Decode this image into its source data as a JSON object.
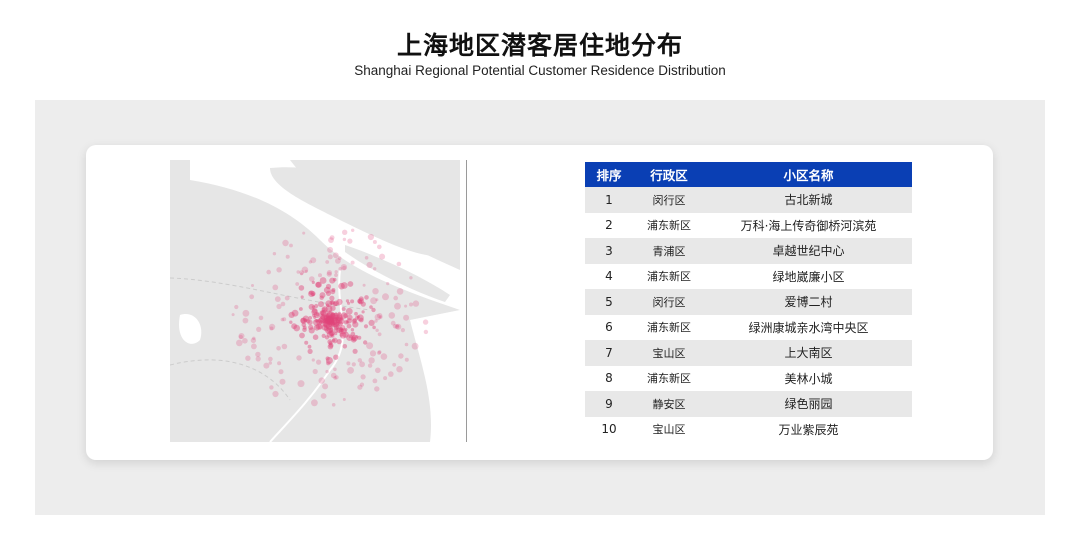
{
  "header": {
    "title": "上海地区潜客居住地分布",
    "subtitle": "Shanghai Regional Potential Customer Residence Distribution"
  },
  "colors": {
    "header_blue": "#0a3fb4",
    "dot": "#e0457a",
    "land": "#e6e6e6"
  },
  "map": {
    "icon": "shanghai-heat-map"
  },
  "table": {
    "headers": [
      "排序",
      "行政区",
      "小区名称"
    ],
    "rows": [
      [
        "1",
        "闵行区",
        "古北新城"
      ],
      [
        "2",
        "浦东新区",
        "万科·海上传奇御桥河滨苑"
      ],
      [
        "3",
        "青浦区",
        "卓越世纪中心"
      ],
      [
        "4",
        "浦东新区",
        "绿地崴廉小区"
      ],
      [
        "5",
        "闵行区",
        "爱博二村"
      ],
      [
        "6",
        "浦东新区",
        "绿洲康城亲水湾中央区"
      ],
      [
        "7",
        "宝山区",
        "上大南区"
      ],
      [
        "8",
        "浦东新区",
        "美林小城"
      ],
      [
        "9",
        "静安区",
        "绿色丽园"
      ],
      [
        "10",
        "宝山区",
        "万业紫辰苑"
      ]
    ]
  }
}
